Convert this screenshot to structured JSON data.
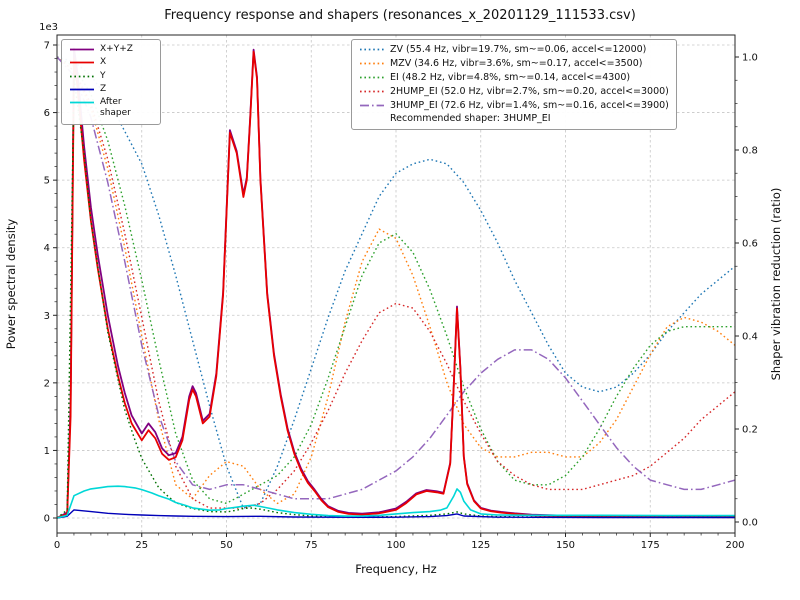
{
  "title": "Frequency response and shapers (resonances_x_20201129_111533.csv)",
  "chart_data": {
    "type": "line",
    "title": "Frequency response and shapers (resonances_x_20201129_111533.csv)",
    "grid": true,
    "legend_position": "upper left / upper center",
    "xlim": [
      0,
      200
    ],
    "x_axis": {
      "label": "Frequency, Hz",
      "ticks": [
        0,
        25,
        50,
        75,
        100,
        125,
        150,
        175,
        200
      ]
    },
    "left_axis": {
      "label": "Power spectral density",
      "offset_label": "1e3",
      "ticks": [
        0,
        1000,
        2000,
        3000,
        4000,
        5000,
        6000,
        7000
      ],
      "tick_labels": [
        "0",
        "1",
        "2",
        "3",
        "4",
        "5",
        "6",
        "7"
      ]
    },
    "right_axis": {
      "label": "Shaper vibration reduction (ratio)",
      "ticks": [
        0,
        0.2,
        0.4,
        0.6,
        0.8,
        1.0
      ],
      "tick_labels": [
        "0.0",
        "0.2",
        "0.4",
        "0.6",
        "0.8",
        "1.0"
      ]
    },
    "freqs": [
      0,
      5,
      10,
      15,
      20,
      25,
      30,
      35,
      40,
      45,
      50,
      55,
      60,
      65,
      70,
      75,
      80,
      85,
      90,
      95,
      100,
      105,
      110,
      115,
      120,
      125,
      130,
      135,
      140,
      145,
      150,
      155,
      160,
      165,
      170,
      175,
      180,
      185,
      190,
      195,
      200
    ],
    "recommended_note": "Recommended shaper: 3HUMP_EI",
    "series": [
      {
        "name": "ZV",
        "axis": "right",
        "color": "#1f77b4",
        "style": "dotted",
        "width": 1.4,
        "label": "ZV (55.4 Hz, vibr=19.7%, sm~=0.06, accel<=12000)",
        "values": [
          1.0,
          0.99,
          0.96,
          0.91,
          0.84,
          0.77,
          0.66,
          0.53,
          0.39,
          0.25,
          0.12,
          0.03,
          0.04,
          0.12,
          0.22,
          0.33,
          0.44,
          0.54,
          0.62,
          0.7,
          0.75,
          0.77,
          0.78,
          0.77,
          0.73,
          0.67,
          0.6,
          0.52,
          0.45,
          0.38,
          0.32,
          0.29,
          0.28,
          0.29,
          0.32,
          0.36,
          0.41,
          0.45,
          0.49,
          0.52,
          0.55
        ]
      },
      {
        "name": "MZV",
        "axis": "right",
        "color": "#ff7f0e",
        "style": "dotted",
        "width": 1.4,
        "label": "MZV (34.6 Hz, vibr=3.6%, sm~=0.17, accel<=3500)",
        "values": [
          1.0,
          0.97,
          0.89,
          0.76,
          0.59,
          0.4,
          0.22,
          0.08,
          0.05,
          0.1,
          0.13,
          0.12,
          0.07,
          0.04,
          0.06,
          0.14,
          0.27,
          0.43,
          0.56,
          0.63,
          0.61,
          0.53,
          0.42,
          0.3,
          0.21,
          0.16,
          0.14,
          0.14,
          0.15,
          0.15,
          0.14,
          0.14,
          0.17,
          0.22,
          0.29,
          0.36,
          0.42,
          0.44,
          0.43,
          0.41,
          0.38
        ]
      },
      {
        "name": "EI",
        "axis": "right",
        "color": "#2ca02c",
        "style": "dotted",
        "width": 1.4,
        "label": "EI (48.2 Hz, vibr=4.8%, sm~=0.14, accel<=4300)",
        "values": [
          1.0,
          0.98,
          0.92,
          0.82,
          0.68,
          0.52,
          0.35,
          0.19,
          0.09,
          0.05,
          0.04,
          0.06,
          0.08,
          0.1,
          0.14,
          0.21,
          0.31,
          0.42,
          0.53,
          0.6,
          0.62,
          0.58,
          0.5,
          0.4,
          0.29,
          0.2,
          0.13,
          0.09,
          0.08,
          0.08,
          0.1,
          0.14,
          0.2,
          0.27,
          0.33,
          0.38,
          0.41,
          0.42,
          0.42,
          0.42,
          0.42
        ]
      },
      {
        "name": "2HUMP_EI",
        "axis": "right",
        "color": "#d62728",
        "style": "dotted",
        "width": 1.4,
        "label": "2HUMP_EI (52.0 Hz, vibr=2.7%, sm~=0.20, accel<=3000)",
        "values": [
          1.0,
          0.97,
          0.9,
          0.78,
          0.62,
          0.44,
          0.26,
          0.12,
          0.05,
          0.03,
          0.03,
          0.03,
          0.04,
          0.07,
          0.11,
          0.17,
          0.24,
          0.32,
          0.39,
          0.45,
          0.47,
          0.46,
          0.41,
          0.34,
          0.26,
          0.19,
          0.13,
          0.1,
          0.08,
          0.07,
          0.07,
          0.07,
          0.08,
          0.09,
          0.1,
          0.12,
          0.15,
          0.18,
          0.22,
          0.25,
          0.28
        ]
      },
      {
        "name": "3HUMP_EI",
        "axis": "right",
        "color": "#9467bd",
        "style": "dashdot",
        "width": 1.5,
        "label": "3HUMP_EI (72.6 Hz, vibr=1.4%, sm~=0.16, accel<=3900)",
        "values": [
          1.0,
          0.96,
          0.87,
          0.73,
          0.56,
          0.38,
          0.23,
          0.13,
          0.08,
          0.07,
          0.08,
          0.08,
          0.07,
          0.06,
          0.05,
          0.05,
          0.05,
          0.06,
          0.07,
          0.09,
          0.11,
          0.14,
          0.18,
          0.23,
          0.28,
          0.32,
          0.35,
          0.37,
          0.37,
          0.35,
          0.31,
          0.26,
          0.21,
          0.16,
          0.12,
          0.09,
          0.08,
          0.07,
          0.07,
          0.08,
          0.09
        ]
      },
      {
        "name": "X+Y+Z",
        "axis": "left",
        "color": "#800080",
        "style": "solid",
        "width": 1.8,
        "x": [
          0,
          3,
          4,
          5,
          6,
          8,
          10,
          12,
          15,
          18,
          20,
          22,
          25,
          27,
          29,
          31,
          33,
          35,
          37,
          39,
          40,
          41,
          43,
          45,
          47,
          49,
          51,
          53,
          55,
          56,
          57,
          58,
          59,
          60,
          62,
          64,
          66,
          68,
          70,
          72,
          74,
          76,
          78,
          80,
          83,
          86,
          90,
          95,
          100,
          103,
          106,
          109,
          112,
          114,
          116,
          117,
          118,
          119,
          120,
          121,
          123,
          125,
          128,
          131,
          135,
          140,
          150,
          160,
          175,
          200
        ],
        "y": [
          0,
          80,
          1700,
          6950,
          6600,
          5500,
          4600,
          3900,
          3000,
          2250,
          1850,
          1520,
          1250,
          1400,
          1270,
          1030,
          930,
          960,
          1200,
          1800,
          1950,
          1850,
          1440,
          1540,
          2140,
          3340,
          5740,
          5430,
          4790,
          5040,
          5930,
          6930,
          6530,
          5030,
          3330,
          2430,
          1830,
          1330,
          980,
          730,
          545,
          420,
          280,
          175,
          105,
          75,
          65,
          85,
          140,
          240,
          365,
          415,
          395,
          375,
          815,
          1920,
          3130,
          2220,
          915,
          515,
          260,
          150,
          110,
          90,
          70,
          50,
          35,
          30,
          25,
          20
        ]
      },
      {
        "name": "X",
        "axis": "left",
        "color": "#e80000",
        "style": "solid",
        "width": 1.8,
        "x": [
          0,
          3,
          4,
          5,
          6,
          8,
          10,
          12,
          15,
          18,
          20,
          22,
          25,
          27,
          29,
          31,
          33,
          35,
          37,
          39,
          40,
          41,
          43,
          45,
          47,
          49,
          51,
          53,
          55,
          56,
          57,
          58,
          59,
          60,
          62,
          64,
          66,
          68,
          70,
          72,
          74,
          76,
          78,
          80,
          83,
          86,
          90,
          95,
          100,
          103,
          106,
          109,
          112,
          114,
          116,
          117,
          118,
          119,
          120,
          121,
          123,
          125,
          128,
          131,
          135,
          140,
          150,
          160,
          175,
          200
        ],
        "y": [
          0,
          60,
          1500,
          6800,
          6400,
          5300,
          4400,
          3700,
          2800,
          2100,
          1700,
          1400,
          1150,
          1300,
          1180,
          950,
          860,
          900,
          1150,
          1750,
          1900,
          1800,
          1400,
          1500,
          2100,
          3300,
          5700,
          5400,
          4750,
          5000,
          5900,
          6900,
          6500,
          5000,
          3300,
          2400,
          1800,
          1300,
          950,
          700,
          520,
          400,
          260,
          160,
          90,
          60,
          50,
          70,
          120,
          220,
          350,
          400,
          380,
          360,
          800,
          1900,
          3100,
          2200,
          900,
          500,
          250,
          140,
          100,
          80,
          60,
          40,
          25,
          20,
          15,
          12
        ]
      },
      {
        "name": "Y",
        "axis": "left",
        "color": "#007000",
        "style": "dotted",
        "width": 1.4,
        "x": [
          0,
          3,
          5,
          8,
          10,
          13,
          15,
          18,
          20,
          23,
          25,
          28,
          30,
          33,
          35,
          38,
          40,
          45,
          50,
          53,
          55,
          57,
          60,
          63,
          65,
          70,
          75,
          80,
          90,
          100,
          110,
          115,
          118,
          120,
          125,
          130,
          140,
          160,
          180,
          200
        ],
        "y": [
          0,
          120,
          6500,
          5400,
          4400,
          3400,
          2750,
          2050,
          1600,
          1150,
          880,
          620,
          450,
          310,
          230,
          170,
          140,
          95,
          90,
          115,
          140,
          150,
          130,
          100,
          80,
          50,
          30,
          20,
          15,
          20,
          40,
          60,
          90,
          60,
          30,
          20,
          15,
          12,
          12,
          12
        ]
      },
      {
        "name": "Z",
        "axis": "left",
        "color": "#0000b8",
        "style": "solid",
        "width": 1.4,
        "x": [
          0,
          3,
          5,
          10,
          15,
          20,
          25,
          30,
          35,
          40,
          50,
          60,
          70,
          80,
          90,
          100,
          110,
          115,
          118,
          120,
          130,
          140,
          160,
          180,
          200
        ],
        "y": [
          0,
          25,
          120,
          95,
          70,
          55,
          45,
          35,
          30,
          25,
          20,
          25,
          15,
          12,
          10,
          12,
          20,
          35,
          60,
          30,
          12,
          10,
          8,
          8,
          8
        ]
      },
      {
        "name": "After shaper",
        "axis": "left",
        "color": "#00d7d7",
        "style": "solid",
        "width": 1.6,
        "x": [
          0,
          3,
          5,
          8,
          10,
          13,
          15,
          18,
          20,
          23,
          25,
          28,
          30,
          33,
          35,
          38,
          40,
          45,
          48,
          50,
          53,
          55,
          58,
          60,
          63,
          65,
          70,
          75,
          80,
          85,
          90,
          95,
          100,
          105,
          110,
          113,
          115,
          117,
          118,
          119,
          120,
          122,
          125,
          130,
          140,
          150,
          160,
          170,
          180,
          190,
          200
        ],
        "y": [
          0,
          40,
          330,
          400,
          430,
          450,
          465,
          470,
          465,
          445,
          420,
          370,
          330,
          280,
          230,
          185,
          150,
          115,
          120,
          140,
          160,
          175,
          190,
          170,
          140,
          120,
          80,
          55,
          35,
          28,
          28,
          38,
          60,
          80,
          95,
          115,
          150,
          320,
          430,
          380,
          250,
          120,
          60,
          45,
          40,
          40,
          40,
          38,
          36,
          35,
          35
        ]
      }
    ]
  }
}
